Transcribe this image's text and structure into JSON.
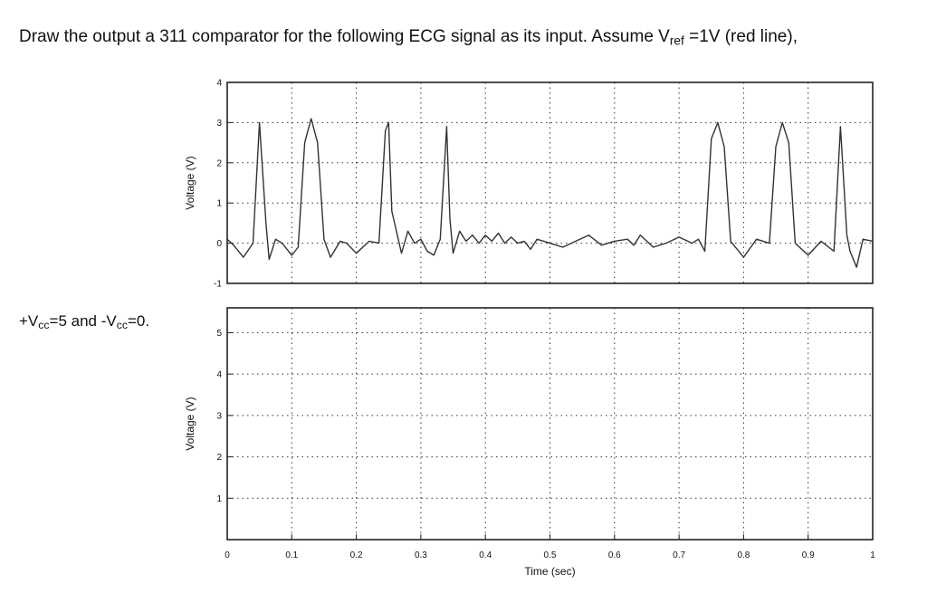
{
  "question": {
    "line1_before_ref": "Draw the output a 311 comparator for the following ECG signal as its input. Assume V",
    "ref_subscript": "ref",
    "line1_after_ref": " =1V (red line),",
    "line2_vcc_plus_prefix": "+V",
    "vcc_subscript": "cc",
    "line2_vcc_plus_value": "=5 and -V",
    "line2_vcc_minus_value": "=0."
  },
  "chart_data": [
    {
      "type": "line",
      "title": "",
      "xlabel": "",
      "ylabel": "Voltage (V)",
      "xlim": [
        0,
        1
      ],
      "ylim": [
        -1,
        4
      ],
      "yticks": [
        "-1",
        "0",
        "1",
        "2",
        "3",
        "4"
      ],
      "grid": true,
      "series": [
        {
          "name": "",
          "color": "#333333",
          "x": [
            0,
            0.01,
            0.025,
            0.04,
            0.05,
            0.06,
            0.065,
            0.075,
            0.085,
            0.1,
            0.11,
            0.12,
            0.13,
            0.14,
            0.15,
            0.16,
            0.175,
            0.185,
            0.2,
            0.22,
            0.235,
            0.245,
            0.25,
            0.255,
            0.27,
            0.28,
            0.29,
            0.3,
            0.31,
            0.32,
            0.33,
            0.34,
            0.345,
            0.35,
            0.36,
            0.37,
            0.38,
            0.39,
            0.4,
            0.41,
            0.42,
            0.43,
            0.44,
            0.45,
            0.46,
            0.47,
            0.48,
            0.5,
            0.52,
            0.54,
            0.56,
            0.58,
            0.6,
            0.62,
            0.63,
            0.64,
            0.65,
            0.66,
            0.68,
            0.7,
            0.72,
            0.73,
            0.74,
            0.75,
            0.76,
            0.77,
            0.78,
            0.8,
            0.82,
            0.84,
            0.85,
            0.86,
            0.87,
            0.88,
            0.9,
            0.92,
            0.94,
            0.95,
            0.96,
            0.965,
            0.975,
            0.985,
            1.0
          ],
          "y": [
            0.1,
            -0.05,
            -0.35,
            0.0,
            3.0,
            0.5,
            -0.4,
            0.1,
            0.0,
            -0.3,
            -0.1,
            2.5,
            3.1,
            2.5,
            0.1,
            -0.35,
            0.05,
            0.0,
            -0.25,
            0.05,
            0.0,
            2.8,
            3.0,
            0.8,
            -0.25,
            0.3,
            0.0,
            0.1,
            -0.2,
            -0.3,
            0.1,
            2.9,
            0.6,
            -0.25,
            0.3,
            0.05,
            0.2,
            0.0,
            0.2,
            0.05,
            0.25,
            0.0,
            0.15,
            0.0,
            0.05,
            -0.15,
            0.1,
            0.0,
            -0.1,
            0.05,
            0.2,
            -0.05,
            0.05,
            0.1,
            -0.05,
            0.2,
            0.05,
            -0.1,
            0.0,
            0.15,
            0.0,
            0.1,
            -0.2,
            2.6,
            3.0,
            2.4,
            0.05,
            -0.35,
            0.1,
            0.0,
            2.4,
            3.0,
            2.5,
            0.0,
            -0.3,
            0.05,
            -0.2,
            2.9,
            0.2,
            -0.2,
            -0.6,
            0.1,
            0.05
          ]
        }
      ]
    },
    {
      "type": "line",
      "title": "",
      "xlabel": "Time (sec)",
      "ylabel": "Voltage (V)",
      "xlim": [
        0,
        1
      ],
      "ylim": [
        0,
        5.6
      ],
      "yticks": [
        "1",
        "2",
        "3",
        "4",
        "5"
      ],
      "xticks": [
        "0",
        "0.1",
        "0.2",
        "0.3",
        "0.4",
        "0.5",
        "0.6",
        "0.7",
        "0.8",
        "0.9",
        "1"
      ],
      "grid": true,
      "series": []
    }
  ]
}
